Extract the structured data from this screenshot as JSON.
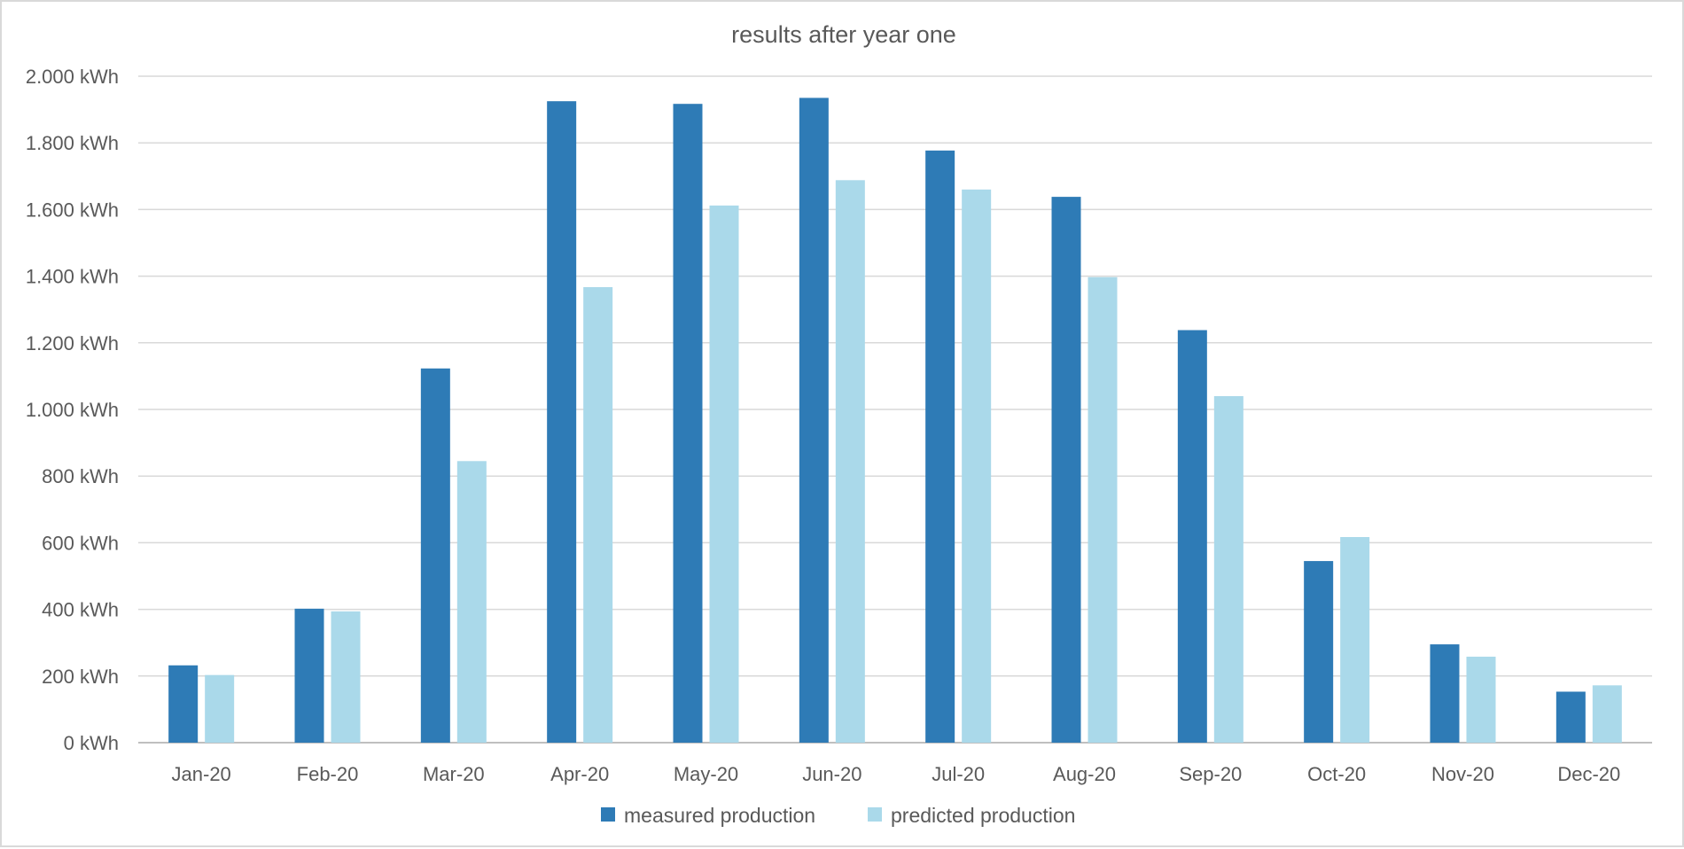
{
  "chart_data": {
    "type": "bar",
    "title": "results after year one",
    "categories": [
      "Jan-20",
      "Feb-20",
      "Mar-20",
      "Apr-20",
      "May-20",
      "Jun-20",
      "Jul-20",
      "Aug-20",
      "Sep-20",
      "Oct-20",
      "Nov-20",
      "Dec-20"
    ],
    "series": [
      {
        "name": "measured production",
        "color": "#2e7bb6",
        "values": [
          232,
          402,
          1123,
          1925,
          1917,
          1935,
          1777,
          1638,
          1238,
          545,
          295,
          153
        ]
      },
      {
        "name": "predicted production",
        "color": "#aad9ea",
        "values": [
          203,
          394,
          845,
          1367,
          1612,
          1688,
          1660,
          1397,
          1040,
          617,
          258,
          172
        ]
      }
    ],
    "ylim": [
      0,
      2000
    ],
    "yticks": [
      "0 kWh",
      "200 kWh",
      "400 kWh",
      "600 kWh",
      "800 kWh",
      "1.000 kWh",
      "1.200 kWh",
      "1.400 kWh",
      "1.600 kWh",
      "1.800 kWh",
      "2.000 kWh"
    ],
    "ytick_step": 200,
    "grid": true,
    "legend_position": "bottom"
  }
}
